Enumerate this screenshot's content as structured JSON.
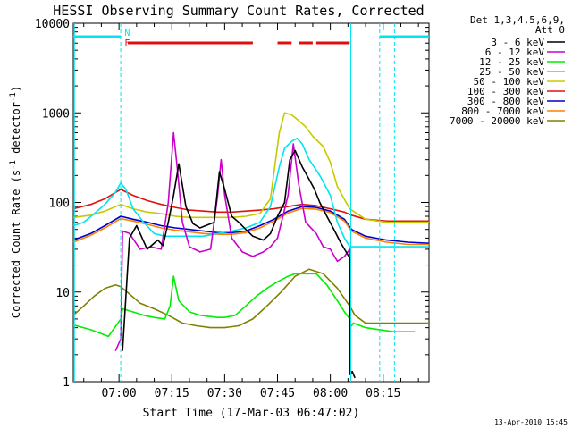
{
  "chart_data": {
    "type": "line",
    "title": "HESSI Observing Summary Count Rates, Corrected",
    "xlabel": "Start Time (17-Mar-03 06:47:02)",
    "ylabel": "Corrected Count Rate (s⁻¹ detector⁻¹)",
    "ylabel_main": "Corrected Count Rate (s",
    "ylabel_sup1": "-1",
    "ylabel_mid": " detector",
    "ylabel_sup2": "-1",
    "ylabel_end": ")",
    "yscale": "log",
    "ylim": [
      1,
      10000
    ],
    "xlim": [
      "06:47:02",
      "08:28:00"
    ],
    "xlim_min": [
      407.03,
      508.0
    ],
    "x_ticks": [
      {
        "label": "07:00",
        "min": 420
      },
      {
        "label": "07:15",
        "min": 435
      },
      {
        "label": "07:30",
        "min": 450
      },
      {
        "label": "07:45",
        "min": 465
      },
      {
        "label": "08:00",
        "min": 480
      },
      {
        "label": "08:15",
        "min": 495
      }
    ],
    "y_ticks": [
      {
        "label": "1",
        "value": 1
      },
      {
        "label": "10",
        "value": 10
      },
      {
        "label": "100",
        "value": 100
      },
      {
        "label": "1000",
        "value": 1000
      },
      {
        "label": "10000",
        "value": 10000
      }
    ],
    "legend_header": [
      "Det 1,3,4,5,6,9,",
      "Att 0"
    ],
    "legend_placement": "right",
    "footer_date": "13-Apr-2010 15:45",
    "night_markers": {
      "label": "N",
      "color": "#00e5ee",
      "segments": [
        [
          407.03,
          420.5
        ],
        [
          494.0,
          508.0
        ]
      ],
      "boundaries": [
        420.5,
        485.8,
        494.0,
        498.2
      ]
    },
    "flare_markers": {
      "label": "F",
      "color": "#e01010",
      "segments": [
        [
          422.5,
          458
        ],
        [
          465,
          469
        ],
        [
          471,
          475
        ],
        [
          476,
          485.5
        ]
      ]
    },
    "series": [
      {
        "name": "3 - 6 keV",
        "color": "#000000",
        "t": [
          407.03,
          420.5,
          421,
          423,
          425,
          428,
          431,
          432.5,
          434,
          435.5,
          437,
          439,
          441,
          443,
          447,
          448.5,
          450,
          452,
          454,
          456,
          458,
          461,
          463,
          465,
          467,
          468.5,
          470,
          472,
          474,
          475.5,
          477,
          479,
          481,
          483,
          485.5,
          485.6,
          486.2,
          487
        ],
        "v": [
          null,
          null,
          2.2,
          40,
          55,
          30,
          38,
          33,
          60,
          120,
          270,
          90,
          58,
          52,
          60,
          220,
          140,
          70,
          60,
          50,
          42,
          38,
          45,
          70,
          100,
          300,
          380,
          250,
          180,
          140,
          100,
          70,
          50,
          35,
          24,
          1.2,
          1.3,
          1.1
        ]
      },
      {
        "name": "6 - 12 keV",
        "color": "#cc00cc",
        "t": [
          407.03,
          418,
          419,
          420.5,
          421,
          423,
          426,
          429,
          432,
          434,
          435.5,
          436.5,
          438,
          440,
          443,
          446,
          448,
          449,
          450,
          452,
          455,
          458,
          461,
          463,
          465,
          468,
          469.5,
          471,
          473,
          476,
          478,
          480,
          482,
          484,
          485.5,
          485.6
        ],
        "v": [
          null,
          null,
          2.2,
          3,
          48,
          45,
          30,
          32,
          30,
          100,
          600,
          250,
          60,
          32,
          28,
          30,
          120,
          300,
          120,
          40,
          28,
          25,
          28,
          32,
          40,
          120,
          450,
          160,
          60,
          45,
          32,
          30,
          22,
          25,
          30,
          2
        ]
      },
      {
        "name": "12 - 25 keV",
        "color": "#00ee00",
        "t": [
          407.03,
          412,
          417,
          420.5,
          421,
          424,
          427,
          430,
          433,
          434.5,
          435.5,
          437,
          440,
          443,
          448,
          450,
          453,
          456,
          459,
          462,
          465,
          468,
          470,
          473,
          476,
          479,
          482,
          484,
          485.5,
          485.6,
          486.5,
          490,
          494,
          498,
          504
        ],
        "v": [
          4.3,
          3.8,
          3.2,
          5,
          6.5,
          6,
          5.5,
          5.2,
          5,
          7,
          15,
          8,
          6,
          5.5,
          5.2,
          5.2,
          5.5,
          7,
          9,
          11,
          13,
          15,
          16,
          16,
          16,
          12,
          8,
          6,
          5,
          4,
          4.5,
          4,
          3.8,
          3.6,
          3.6
        ]
      },
      {
        "name": "25 - 50 keV",
        "color": "#00e5ee",
        "t": [
          407.03,
          410,
          413,
          416,
          419,
          420.5,
          422,
          424,
          427,
          430,
          433,
          436,
          440,
          444,
          448,
          452,
          456,
          460,
          463,
          465.5,
          467,
          469,
          470.5,
          472,
          474,
          477,
          480,
          482,
          484,
          485.5,
          487,
          490,
          494,
          498,
          504,
          508
        ],
        "v": [
          55,
          60,
          75,
          95,
          130,
          165,
          140,
          85,
          60,
          45,
          42,
          42,
          42,
          42,
          45,
          48,
          52,
          60,
          90,
          250,
          400,
          480,
          520,
          450,
          300,
          200,
          120,
          60,
          40,
          32,
          32,
          32,
          32,
          32,
          32,
          32
        ]
      },
      {
        "name": "50 - 100 keV",
        "color": "#c8c800",
        "t": [
          407.03,
          412,
          416,
          420.5,
          424,
          428,
          432,
          436,
          440,
          444,
          448,
          452,
          456,
          460,
          463,
          465.5,
          467,
          469,
          471,
          473,
          475,
          478,
          480,
          482,
          485.5,
          490,
          496,
          502,
          508
        ],
        "v": [
          68,
          72,
          80,
          95,
          85,
          78,
          75,
          70,
          68,
          68,
          68,
          68,
          70,
          75,
          110,
          600,
          1000,
          950,
          820,
          700,
          550,
          420,
          280,
          150,
          85,
          65,
          60,
          60,
          60
        ]
      },
      {
        "name": "100 - 300 keV",
        "color": "#e01010",
        "t": [
          407.03,
          412,
          416,
          420.5,
          424,
          428,
          432,
          436,
          440,
          444,
          448,
          452,
          456,
          460,
          464,
          468,
          472,
          476,
          480,
          484,
          486,
          490,
          496,
          502,
          508
        ],
        "v": [
          85,
          95,
          110,
          140,
          120,
          105,
          95,
          88,
          82,
          80,
          78,
          78,
          80,
          82,
          85,
          90,
          95,
          92,
          85,
          78,
          72,
          65,
          62,
          62,
          62
        ]
      },
      {
        "name": "300 - 800 keV",
        "color": "#0000cc",
        "t": [
          407.03,
          412,
          416,
          420.5,
          424,
          428,
          432,
          436,
          440,
          444,
          448,
          452,
          456,
          460,
          464,
          468,
          472,
          476,
          480,
          484,
          486,
          490,
          496,
          502,
          508
        ],
        "v": [
          38,
          45,
          55,
          70,
          65,
          60,
          55,
          52,
          50,
          48,
          46,
          46,
          48,
          55,
          65,
          80,
          90,
          88,
          80,
          65,
          50,
          42,
          38,
          36,
          35
        ]
      },
      {
        "name": "800 - 7000 keV",
        "color": "#ff8000",
        "t": [
          407.03,
          412,
          416,
          420.5,
          424,
          428,
          432,
          436,
          440,
          444,
          448,
          452,
          456,
          460,
          464,
          468,
          472,
          476,
          480,
          484,
          486,
          490,
          496,
          502,
          508
        ],
        "v": [
          36,
          43,
          52,
          66,
          62,
          57,
          52,
          49,
          47,
          45,
          44,
          44,
          46,
          52,
          62,
          76,
          86,
          84,
          77,
          62,
          48,
          40,
          36,
          34,
          34
        ]
      },
      {
        "name": "7000 - 20000 keV",
        "color": "#808000",
        "t": [
          407.03,
          410,
          413,
          416,
          419,
          420.5,
          423,
          426,
          430,
          434,
          438,
          442,
          446,
          450,
          454,
          458,
          462,
          466,
          470,
          474,
          478,
          482,
          485.5,
          487,
          490,
          494,
          498,
          504,
          508
        ],
        "v": [
          5.5,
          7,
          9,
          11,
          12,
          11.5,
          9.5,
          7.5,
          6.5,
          5.5,
          4.5,
          4.2,
          4,
          4,
          4.2,
          5,
          7,
          10,
          15,
          18,
          16,
          11,
          7,
          5.5,
          4.5,
          4.5,
          4.5,
          4.5,
          4.5
        ]
      }
    ]
  }
}
